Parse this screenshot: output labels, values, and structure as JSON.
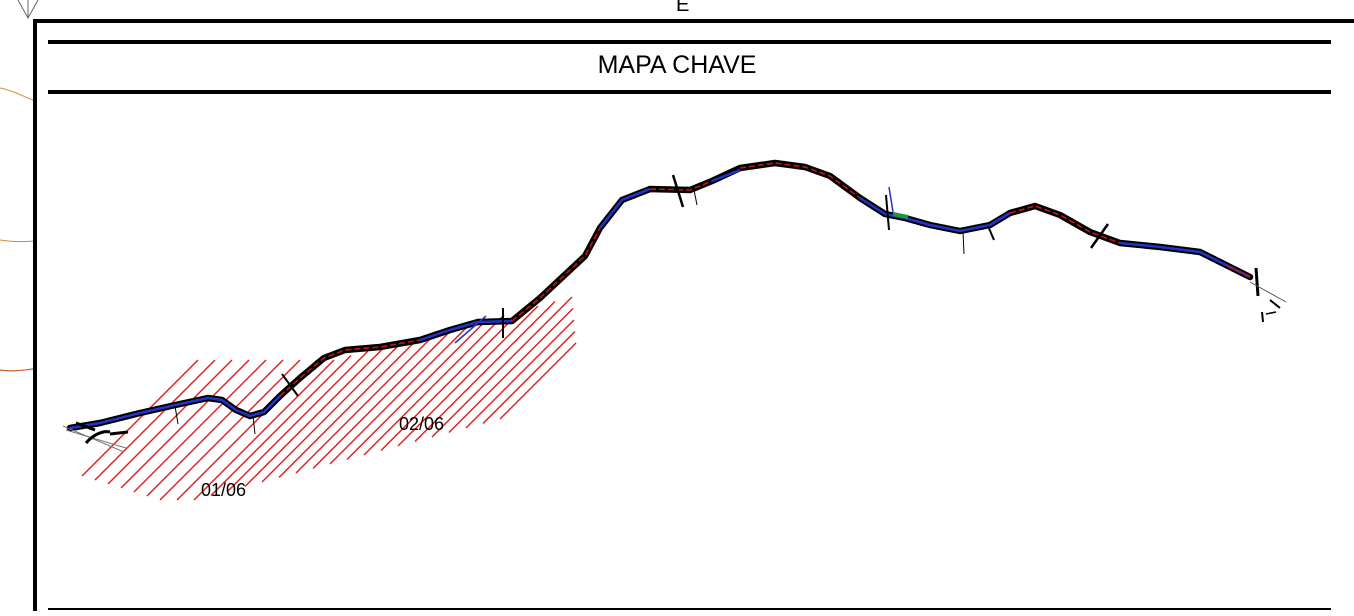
{
  "header": {
    "top_letter": "E",
    "title": "MAPA CHAVE"
  },
  "sheets": [
    {
      "id": "01/06",
      "label": "01/06"
    },
    {
      "id": "02/06",
      "label": "02/06"
    }
  ],
  "colors": {
    "frame": "#000000",
    "route_outline": "#000000",
    "route_fill_primary": "#1f2fbf",
    "route_dashes": "#d01010",
    "hatch": "#e01c1c",
    "green_segment": "#1a9a3a",
    "contour": "#c88a3c"
  }
}
